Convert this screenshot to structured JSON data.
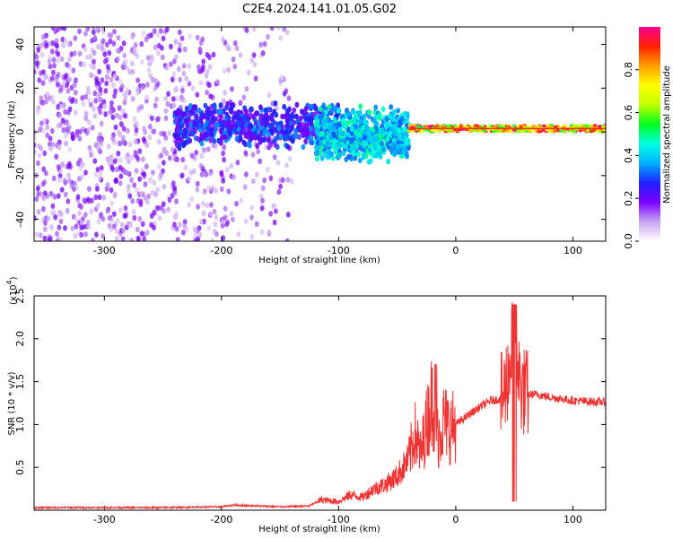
{
  "title": "C2E4.2024.141.01.05.G02",
  "chart_data": [
    {
      "type": "heatmap",
      "xlabel": "Height of straight line (km)",
      "ylabel": "Frequency (Hz)",
      "xlim": [
        -360,
        128
      ],
      "ylim": [
        -50,
        48
      ],
      "x_ticks": [
        -300,
        -200,
        -100,
        0,
        100
      ],
      "y_ticks": [
        -40,
        -20,
        0,
        20,
        40
      ],
      "colorbar": {
        "label": "Normalized spectral amplitude",
        "range": [
          0,
          1
        ],
        "ticks": [
          0.0,
          0.2,
          0.4,
          0.6,
          0.8
        ],
        "colormap": [
          "#ffffff",
          "#c8a6f0",
          "#7a00ff",
          "#2020ff",
          "#00b0ff",
          "#00ffe0",
          "#00ff20",
          "#c0ff00",
          "#ffff00",
          "#ffa000",
          "#ff2000",
          "#ff0090"
        ]
      },
      "features": [
        {
          "x_range": [
            -360,
            -140
          ],
          "y_range": [
            -50,
            48
          ],
          "amplitude_range": [
            0.05,
            0.2
          ],
          "kind": "scattered noise"
        },
        {
          "x_range": [
            -240,
            -100
          ],
          "y_range": [
            -8,
            14
          ],
          "amplitude_range": [
            0.15,
            0.35
          ],
          "kind": "band"
        },
        {
          "x_range": [
            -120,
            -40
          ],
          "y_range": [
            -14,
            12
          ],
          "amplitude_range": [
            0.3,
            0.5
          ],
          "kind": "dispersed band"
        },
        {
          "x_range": [
            -40,
            128
          ],
          "y_range": [
            0,
            3
          ],
          "amplitude_range": [
            0.5,
            1.0
          ],
          "kind": "narrow carrier line"
        }
      ]
    },
    {
      "type": "line",
      "xlabel": "Height of straight line (km)",
      "ylabel": "SNR (10 * v/v)",
      "y_multiplier": "(x10",
      "y_multiplier_exp": "4",
      "y_multiplier_close": ")",
      "xlim": [
        -360,
        128
      ],
      "ylim": [
        0,
        2.5
      ],
      "x_ticks": [
        -300,
        -200,
        -100,
        0,
        100
      ],
      "y_ticks": [
        0.5,
        1.0,
        1.5,
        2.0,
        2.5
      ],
      "series": [
        {
          "color": "#ee3333",
          "points": [
            {
              "x": -360,
              "y": 0.03
            },
            {
              "x": -300,
              "y": 0.03
            },
            {
              "x": -250,
              "y": 0.03
            },
            {
              "x": -200,
              "y": 0.04
            },
            {
              "x": -190,
              "y": 0.06
            },
            {
              "x": -150,
              "y": 0.04
            },
            {
              "x": -125,
              "y": 0.05
            },
            {
              "x": -115,
              "y": 0.12
            },
            {
              "x": -100,
              "y": 0.1
            },
            {
              "x": -90,
              "y": 0.18
            },
            {
              "x": -80,
              "y": 0.15
            },
            {
              "x": -70,
              "y": 0.25
            },
            {
              "x": -60,
              "y": 0.3
            },
            {
              "x": -50,
              "y": 0.4
            },
            {
              "x": -40,
              "y": 0.6
            },
            {
              "x": -35,
              "y": 0.9
            },
            {
              "x": -30,
              "y": 0.65
            },
            {
              "x": -25,
              "y": 1.0
            },
            {
              "x": -20,
              "y": 1.3
            },
            {
              "x": -15,
              "y": 0.85
            },
            {
              "x": -10,
              "y": 1.05
            },
            {
              "x": -5,
              "y": 0.95
            },
            {
              "x": 0,
              "y": 1.0
            },
            {
              "x": 10,
              "y": 1.1
            },
            {
              "x": 20,
              "y": 1.2
            },
            {
              "x": 30,
              "y": 1.28
            },
            {
              "x": 40,
              "y": 1.3
            },
            {
              "x": 45,
              "y": 1.6
            },
            {
              "x": 50,
              "y": 2.1
            },
            {
              "x": 55,
              "y": 1.45
            },
            {
              "x": 60,
              "y": 1.35
            },
            {
              "x": 70,
              "y": 1.35
            },
            {
              "x": 80,
              "y": 1.32
            },
            {
              "x": 90,
              "y": 1.3
            },
            {
              "x": 100,
              "y": 1.28
            },
            {
              "x": 110,
              "y": 1.27
            },
            {
              "x": 128,
              "y": 1.26
            }
          ]
        }
      ]
    }
  ]
}
